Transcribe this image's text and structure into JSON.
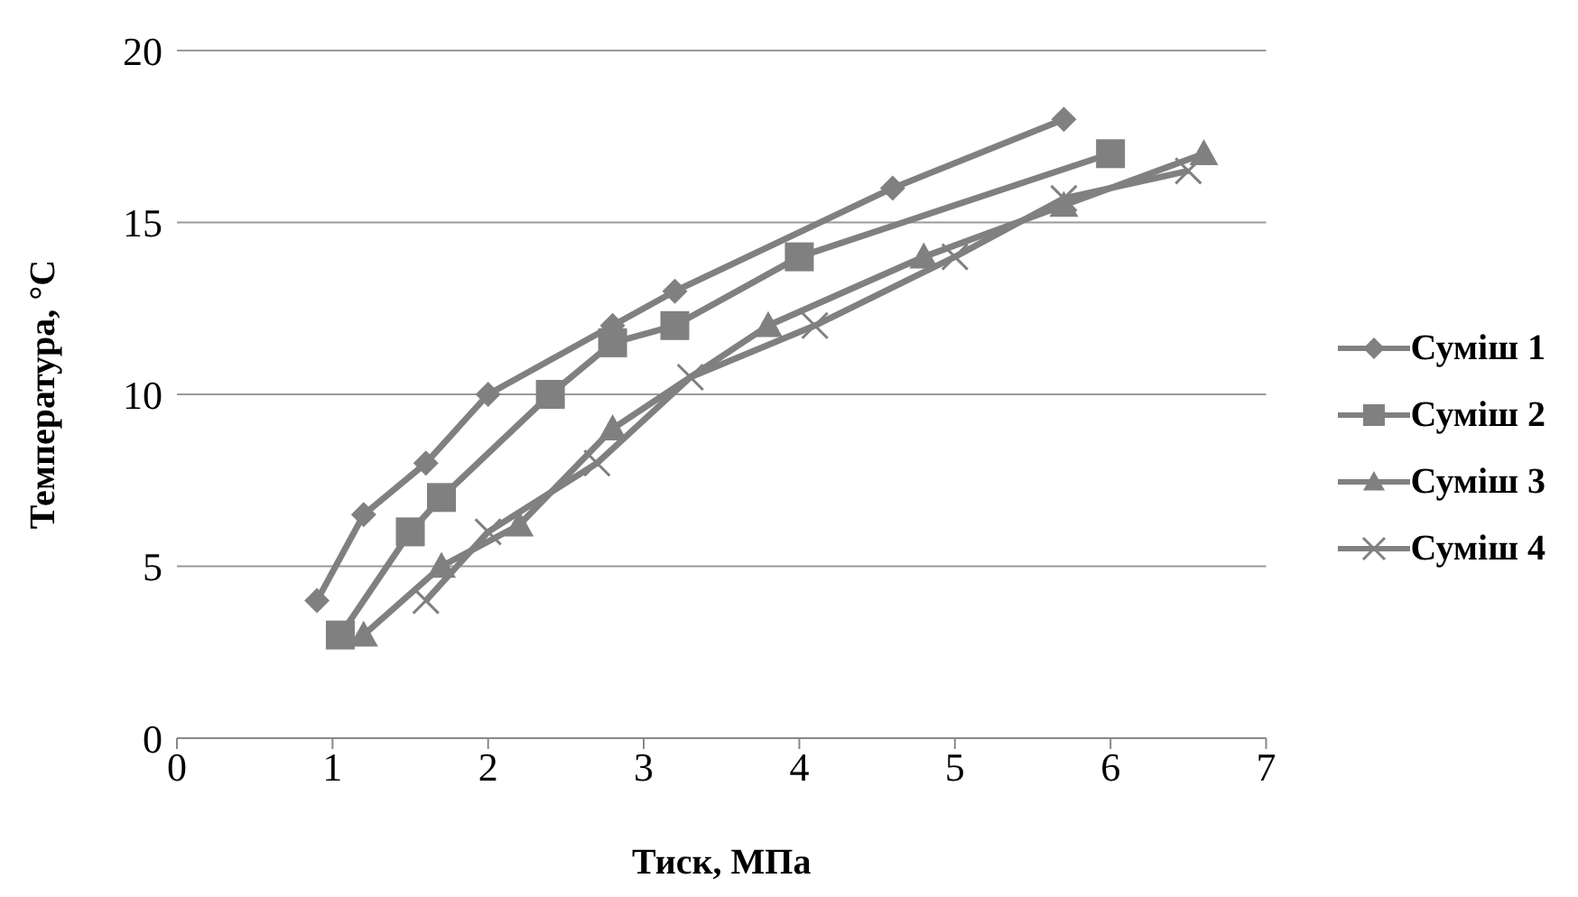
{
  "chart_data": {
    "type": "line",
    "xlabel": "Тиск, МПа",
    "ylabel": "Температура, °C",
    "xlim": [
      0,
      7
    ],
    "xticks": [
      0,
      1,
      2,
      3,
      4,
      5,
      6,
      7
    ],
    "ylim": [
      0,
      20
    ],
    "yticks": [
      0,
      5,
      10,
      15,
      20
    ],
    "grid": "y",
    "legend": "right",
    "series": [
      {
        "name": "Суміш 1",
        "color": "#808080",
        "marker": "diamond",
        "x": [
          0.9,
          1.2,
          1.6,
          2,
          2.8,
          3.2,
          4.6,
          5.7
        ],
        "values": [
          4,
          6.5,
          8,
          10,
          12,
          13,
          16,
          18
        ]
      },
      {
        "name": "Суміш 2",
        "color": "#808080",
        "marker": "square",
        "x": [
          1.05,
          1.5,
          1.7,
          2.4,
          2.8,
          3.2,
          4,
          6
        ],
        "values": [
          3,
          6,
          7,
          10,
          11.5,
          12,
          14,
          17
        ]
      },
      {
        "name": "Суміш 3",
        "color": "#808080",
        "marker": "triangle",
        "x": [
          1.2,
          1.7,
          2.2,
          2.8,
          3.8,
          4.8,
          5.7,
          6.6
        ],
        "values": [
          3,
          5,
          6.2,
          9,
          12,
          14,
          15.5,
          17
        ]
      },
      {
        "name": "Суміш 4",
        "color": "#808080",
        "marker": "cross",
        "x": [
          1.6,
          2,
          2.7,
          3.3,
          4.1,
          5,
          5.7,
          6.5
        ],
        "values": [
          4,
          6,
          8,
          10.5,
          12,
          14,
          15.7,
          16.5
        ]
      }
    ]
  }
}
